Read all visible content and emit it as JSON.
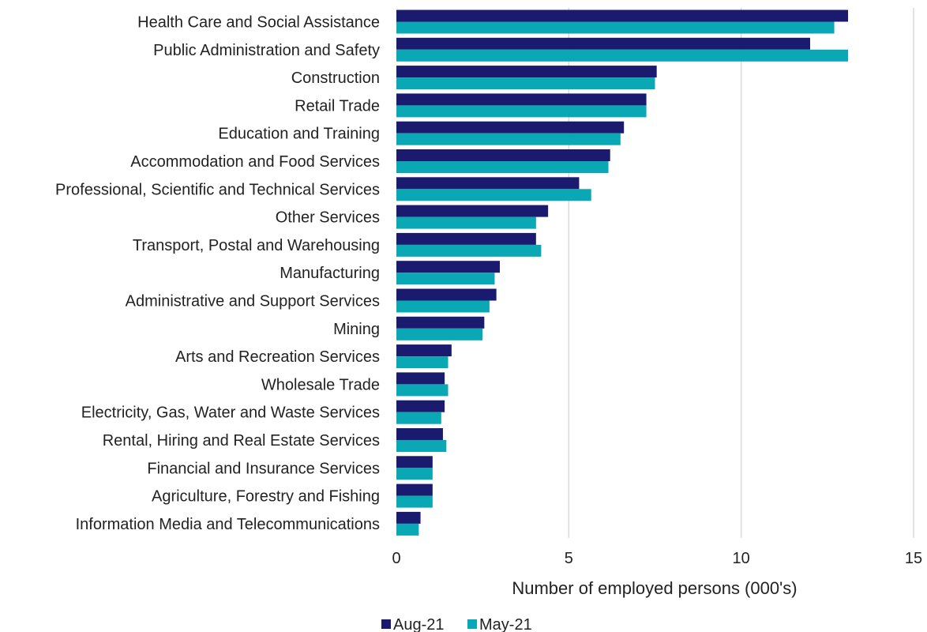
{
  "chart_data": {
    "type": "bar",
    "orientation": "horizontal",
    "categories": [
      "Health Care and Social Assistance",
      "Public Administration and Safety",
      "Construction",
      "Retail Trade",
      "Education and Training",
      "Accommodation and Food Services",
      "Professional, Scientific and Technical Services",
      "Other Services",
      "Transport, Postal and Warehousing",
      "Manufacturing",
      "Administrative and Support Services",
      "Mining",
      "Arts and Recreation Services",
      "Wholesale Trade",
      "Electricity, Gas, Water and Waste Services",
      "Rental, Hiring and Real Estate Services",
      "Financial and Insurance Services",
      "Agriculture, Forestry and Fishing",
      "Information Media and Telecommunications"
    ],
    "series": [
      {
        "name": "Aug-21",
        "color": "#1a1a6e",
        "values": [
          13.1,
          12.0,
          7.55,
          7.25,
          6.6,
          6.2,
          5.3,
          4.4,
          4.05,
          3.0,
          2.9,
          2.55,
          1.6,
          1.4,
          1.4,
          1.35,
          1.05,
          1.05,
          0.7
        ]
      },
      {
        "name": "May-21",
        "color": "#0aa7b4",
        "values": [
          12.7,
          13.1,
          7.5,
          7.25,
          6.5,
          6.15,
          5.65,
          4.05,
          4.2,
          2.85,
          2.7,
          2.5,
          1.5,
          1.5,
          1.3,
          1.45,
          1.05,
          1.05,
          0.65
        ]
      }
    ],
    "xlabel": "Number of employed persons (000's)",
    "xlim": [
      0,
      15
    ],
    "xticks": [
      "0",
      "5",
      "10",
      "15"
    ],
    "grid": "vertical",
    "legend_position": "bottom-center"
  }
}
